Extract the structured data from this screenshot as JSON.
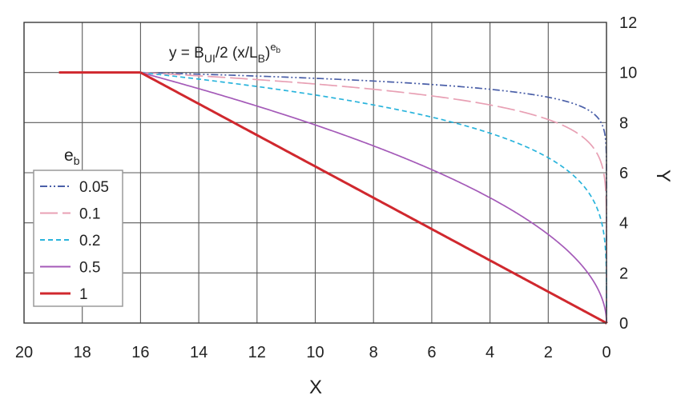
{
  "chart_data": {
    "type": "line",
    "title": "",
    "formula": {
      "base": "y = B",
      "sub1": "UI",
      "mid": "/2 (x/L",
      "sub2": "B",
      "close": ")",
      "sup": "e",
      "supsub": "b"
    },
    "xlabel": "X",
    "ylabel": "Y",
    "xlim": [
      20,
      0
    ],
    "ylim": [
      0,
      12
    ],
    "x_ticks": [
      "20",
      "18",
      "16",
      "14",
      "12",
      "10",
      "8",
      "6",
      "4",
      "2",
      "0"
    ],
    "y_ticks": [
      "0",
      "2",
      "4",
      "6",
      "8",
      "10",
      "12"
    ],
    "grid": true,
    "legend": {
      "title_main": "e",
      "title_sub": "b",
      "position": "left",
      "entries": [
        "0.05",
        "0.1",
        "0.2",
        "0.5",
        "1"
      ]
    },
    "plateau": {
      "x": [
        18.8,
        16
      ],
      "y": 10
    },
    "curve_model": {
      "L_B": 16,
      "y_max": 10
    },
    "series": [
      {
        "name": "0.05",
        "exponent": 0.05,
        "color": "#4a5fa8",
        "dash": "9,3,2,3,2,3"
      },
      {
        "name": "0.1",
        "exponent": 0.1,
        "color": "#e8a0b4",
        "dash": "22,6"
      },
      {
        "name": "0.2",
        "exponent": 0.2,
        "color": "#2ab4dc",
        "dash": "6,4"
      },
      {
        "name": "0.5",
        "exponent": 0.5,
        "color": "#a45ab8",
        "dash": ""
      },
      {
        "name": "1",
        "exponent": 1,
        "color": "#d0282e",
        "dash": ""
      }
    ]
  }
}
